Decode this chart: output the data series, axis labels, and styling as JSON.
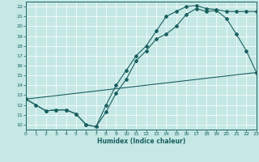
{
  "xlabel": "Humidex (Indice chaleur)",
  "bg_color": "#c5e8e5",
  "line_color": "#1a6060",
  "xlim": [
    0,
    23
  ],
  "ylim": [
    9.5,
    22.5
  ],
  "xticks": [
    0,
    1,
    2,
    3,
    4,
    5,
    6,
    7,
    8,
    9,
    10,
    11,
    12,
    13,
    14,
    15,
    16,
    17,
    18,
    19,
    20,
    21,
    22,
    23
  ],
  "yticks": [
    10,
    11,
    12,
    13,
    14,
    15,
    16,
    17,
    18,
    19,
    20,
    21,
    22
  ],
  "line1_x": [
    0,
    1,
    2,
    3,
    4,
    5,
    6,
    7,
    8,
    9,
    10,
    11,
    12,
    13,
    14,
    15,
    16,
    17,
    18,
    19,
    20,
    21,
    22,
    23
  ],
  "line1_y": [
    12.6,
    12.0,
    11.4,
    11.5,
    11.5,
    11.1,
    10.0,
    9.8,
    11.3,
    13.2,
    14.6,
    16.5,
    17.5,
    18.7,
    19.2,
    20.0,
    21.2,
    21.8,
    21.5,
    21.6,
    20.8,
    19.2,
    17.5,
    15.3
  ],
  "line2_x": [
    0,
    2,
    3,
    4,
    5,
    6,
    7,
    8,
    9,
    10,
    11,
    12,
    13,
    14,
    15,
    16,
    17,
    18,
    19,
    20,
    21,
    22,
    23
  ],
  "line2_y": [
    12.6,
    11.4,
    11.5,
    11.5,
    11.1,
    10.0,
    9.8,
    12.0,
    14.0,
    15.5,
    17.0,
    18.0,
    19.5,
    21.0,
    21.5,
    22.0,
    22.1,
    21.8,
    21.7,
    21.5,
    21.5,
    21.5,
    21.5
  ],
  "line3_x": [
    0,
    23
  ],
  "line3_y": [
    12.6,
    15.3
  ]
}
